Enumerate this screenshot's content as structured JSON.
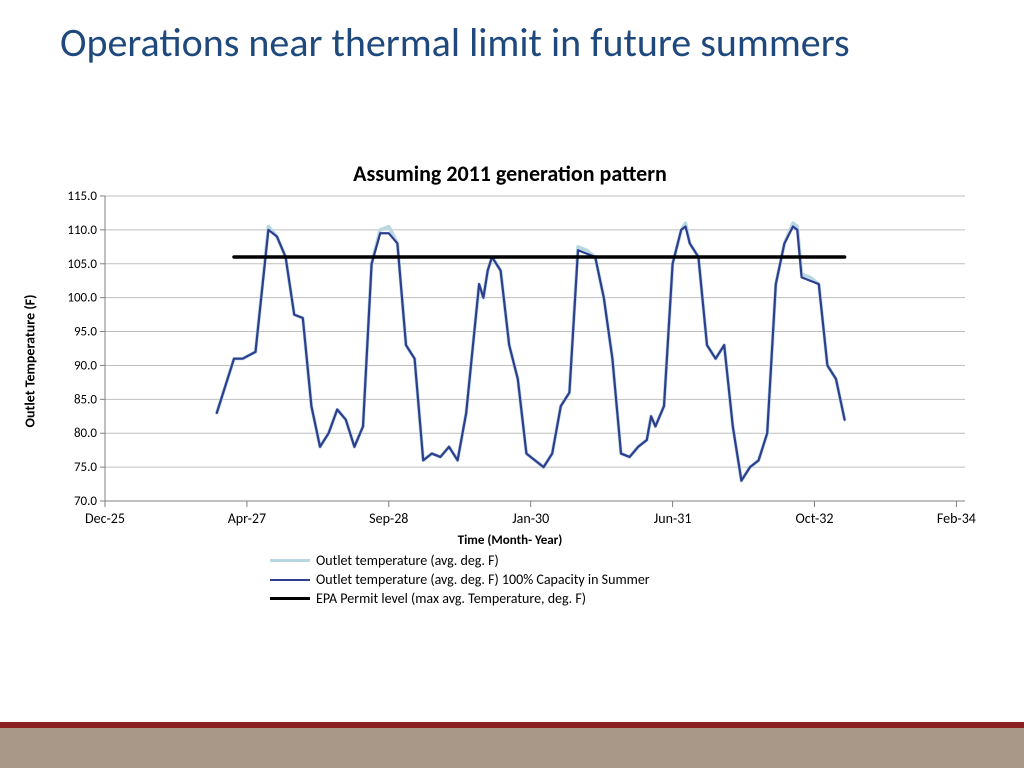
{
  "title": "Operations near thermal limit in future summers",
  "chart": {
    "type": "line",
    "title": "Assuming 2011 generation pattern",
    "ylabel": "Outlet Temperature (F)",
    "xlabel": "Time (Month- Year)",
    "background_color": "#ffffff",
    "grid_color": "#bfbfbf",
    "axis_color": "#808080",
    "title_fontsize": 22,
    "label_fontsize": 14,
    "tick_fontsize": 14,
    "ylim": [
      70.0,
      115.0
    ],
    "ytick_step": 5.0,
    "yticks": [
      70.0,
      75.0,
      80.0,
      85.0,
      90.0,
      95.0,
      100.0,
      105.0,
      110.0,
      115.0
    ],
    "xlim": [
      0,
      100
    ],
    "xticks": [
      {
        "x": 0,
        "label": "Dec-25"
      },
      {
        "x": 16.5,
        "label": "Apr-27"
      },
      {
        "x": 33,
        "label": "Sep-28"
      },
      {
        "x": 49.5,
        "label": "Jan-30"
      },
      {
        "x": 66,
        "label": "Jun-31"
      },
      {
        "x": 82.5,
        "label": "Oct-32"
      },
      {
        "x": 99,
        "label": "Feb-34"
      }
    ],
    "series": [
      {
        "name": "Outlet temperature (avg. deg. F)",
        "color": "#b7d7e2",
        "width": 3.5,
        "points": [
          [
            13,
            83
          ],
          [
            15,
            91
          ],
          [
            16,
            91
          ],
          [
            17.5,
            92
          ],
          [
            19,
            110.5
          ],
          [
            20,
            109
          ],
          [
            21,
            106
          ],
          [
            22,
            97.5
          ],
          [
            23,
            97
          ],
          [
            24,
            84
          ],
          [
            25,
            78
          ],
          [
            26,
            80
          ],
          [
            27,
            83.5
          ],
          [
            28,
            82
          ],
          [
            29,
            78
          ],
          [
            30,
            81
          ],
          [
            31,
            105
          ],
          [
            32,
            110
          ],
          [
            33,
            110.5
          ],
          [
            34,
            108
          ],
          [
            35,
            93
          ],
          [
            36,
            91
          ],
          [
            37,
            76
          ],
          [
            38,
            77
          ],
          [
            39,
            76.5
          ],
          [
            40,
            78
          ],
          [
            41,
            76
          ],
          [
            42,
            83
          ],
          [
            43.5,
            102
          ],
          [
            44,
            100
          ],
          [
            44.5,
            104
          ],
          [
            45,
            106
          ],
          [
            46,
            104
          ],
          [
            47,
            93
          ],
          [
            48,
            88
          ],
          [
            49,
            77
          ],
          [
            50,
            76
          ],
          [
            51,
            75
          ],
          [
            52,
            77
          ],
          [
            53,
            84
          ],
          [
            54,
            86
          ],
          [
            55,
            107.5
          ],
          [
            56,
            107
          ],
          [
            57,
            106
          ],
          [
            58,
            100
          ],
          [
            59,
            91
          ],
          [
            60,
            77
          ],
          [
            61,
            76.5
          ],
          [
            62,
            78
          ],
          [
            63,
            79
          ],
          [
            63.5,
            82.5
          ],
          [
            64,
            81
          ],
          [
            65,
            84
          ],
          [
            66,
            105
          ],
          [
            67,
            110
          ],
          [
            67.5,
            111
          ],
          [
            68,
            108
          ],
          [
            69,
            106
          ],
          [
            70,
            93
          ],
          [
            71,
            91
          ],
          [
            72,
            93
          ],
          [
            73,
            81
          ],
          [
            74,
            73
          ],
          [
            75,
            75
          ],
          [
            76,
            76
          ],
          [
            77,
            80
          ],
          [
            78,
            102
          ],
          [
            79,
            108
          ],
          [
            80,
            111
          ],
          [
            80.5,
            110.5
          ],
          [
            81,
            103.5
          ],
          [
            82,
            103
          ],
          [
            83,
            102
          ],
          [
            84,
            90
          ],
          [
            85,
            88
          ],
          [
            86,
            82
          ]
        ]
      },
      {
        "name": "Outlet temperature (avg. deg. F) 100% Capacity in Summer",
        "color": "#2e3e8f",
        "width": 2.2,
        "points": [
          [
            13,
            83
          ],
          [
            15,
            91
          ],
          [
            16,
            91
          ],
          [
            17.5,
            92
          ],
          [
            19,
            110
          ],
          [
            20,
            109
          ],
          [
            21,
            106
          ],
          [
            22,
            97.5
          ],
          [
            23,
            97
          ],
          [
            24,
            84
          ],
          [
            25,
            78
          ],
          [
            26,
            80
          ],
          [
            27,
            83.5
          ],
          [
            28,
            82
          ],
          [
            29,
            78
          ],
          [
            30,
            81
          ],
          [
            31,
            105
          ],
          [
            32,
            109.5
          ],
          [
            33,
            109.5
          ],
          [
            34,
            108
          ],
          [
            35,
            93
          ],
          [
            36,
            91
          ],
          [
            37,
            76
          ],
          [
            38,
            77
          ],
          [
            39,
            76.5
          ],
          [
            40,
            78
          ],
          [
            41,
            76
          ],
          [
            42,
            83
          ],
          [
            43.5,
            102
          ],
          [
            44,
            100
          ],
          [
            44.5,
            104
          ],
          [
            45,
            106
          ],
          [
            46,
            104
          ],
          [
            47,
            93
          ],
          [
            48,
            88
          ],
          [
            49,
            77
          ],
          [
            50,
            76
          ],
          [
            51,
            75
          ],
          [
            52,
            77
          ],
          [
            53,
            84
          ],
          [
            54,
            86
          ],
          [
            55,
            107
          ],
          [
            56,
            106.5
          ],
          [
            57,
            106
          ],
          [
            58,
            100
          ],
          [
            59,
            91
          ],
          [
            60,
            77
          ],
          [
            61,
            76.5
          ],
          [
            62,
            78
          ],
          [
            63,
            79
          ],
          [
            63.5,
            82.5
          ],
          [
            64,
            81
          ],
          [
            65,
            84
          ],
          [
            66,
            105
          ],
          [
            67,
            110
          ],
          [
            67.5,
            110.5
          ],
          [
            68,
            108
          ],
          [
            69,
            106
          ],
          [
            70,
            93
          ],
          [
            71,
            91
          ],
          [
            72,
            93
          ],
          [
            73,
            81
          ],
          [
            74,
            73
          ],
          [
            75,
            75
          ],
          [
            76,
            76
          ],
          [
            77,
            80
          ],
          [
            78,
            102
          ],
          [
            79,
            108
          ],
          [
            80,
            110.5
          ],
          [
            80.5,
            110
          ],
          [
            81,
            103
          ],
          [
            82,
            102.5
          ],
          [
            83,
            102
          ],
          [
            84,
            90
          ],
          [
            85,
            88
          ],
          [
            86,
            82
          ]
        ]
      },
      {
        "name": "EPA Permit level (max avg. Temperature, deg. F)",
        "color": "#000000",
        "width": 3.5,
        "points": [
          [
            15,
            106
          ],
          [
            86,
            106
          ]
        ]
      }
    ]
  },
  "footer": {
    "bar_color": "#a99887",
    "accent_color": "#8c2020"
  }
}
